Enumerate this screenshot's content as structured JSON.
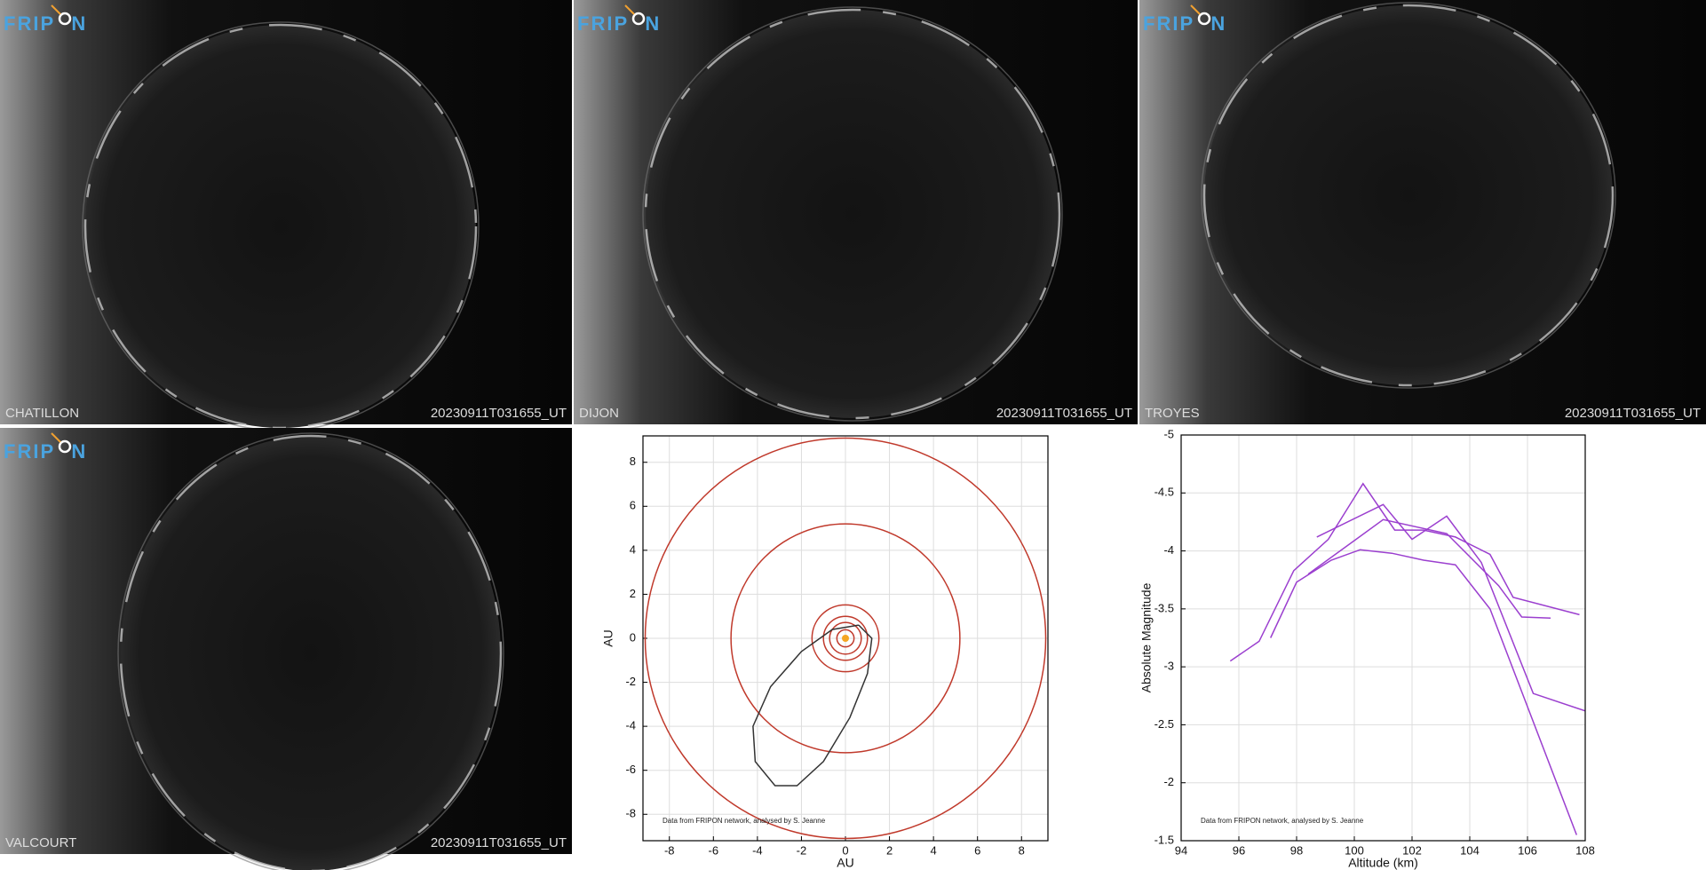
{
  "logo": {
    "left": "FRIP",
    "right": "N"
  },
  "cameras": [
    {
      "station": "CHATILLON",
      "timestamp": "20230911T031655_UT"
    },
    {
      "station": "DIJON",
      "timestamp": "20230911T031655_UT"
    },
    {
      "station": "TROYES",
      "timestamp": "20230911T031655_UT"
    },
    {
      "station": "VALCOURT",
      "timestamp": "20230911T031655_UT"
    }
  ],
  "chart_data": [
    {
      "type": "orbit",
      "xlabel": "AU",
      "ylabel": "AU",
      "annotation": "Data from FRIPON network, analysed by S. Jeanne",
      "xlim": [
        -9.2,
        9.2
      ],
      "ylim": [
        -9.2,
        9.2
      ],
      "xticks": [
        -8,
        -6,
        -4,
        -2,
        0,
        2,
        4,
        6,
        8
      ],
      "yticks": [
        -8,
        -6,
        -4,
        -2,
        0,
        2,
        4,
        6,
        8
      ],
      "grid": true,
      "sun": {
        "x": 0,
        "y": 0,
        "color": "#f5a623"
      },
      "orbits": {
        "color": "#c0392b",
        "radii": [
          0.39,
          0.72,
          1,
          1.52,
          5.2,
          9.1
        ]
      },
      "series": [
        {
          "color": "#333333",
          "x": [
            0.6,
            1.2,
            1.0,
            0.2,
            -1.0,
            -2.2,
            -3.2,
            -4.1,
            -4.2,
            -3.4,
            -2.0,
            -0.6,
            0.6
          ],
          "y": [
            0.6,
            0,
            -1.6,
            -3.6,
            -5.6,
            -6.7,
            -6.7,
            -5.6,
            -4.0,
            -2.2,
            -0.6,
            0.4,
            0.6
          ]
        }
      ]
    },
    {
      "type": "line",
      "xlabel": "Altitude (km)",
      "ylabel": "Absolute Magnitude",
      "annotation": "Data from FRIPON network, analysed by S. Jeanne",
      "xlim": [
        94,
        108
      ],
      "ylim": [
        -1.5,
        -5
      ],
      "xticks": [
        94,
        96,
        98,
        100,
        102,
        104,
        106,
        108
      ],
      "yticks": [
        -5,
        -4.5,
        -4,
        -3.5,
        -3,
        -2.5,
        -2,
        -1.5
      ],
      "grid": true,
      "series": [
        {
          "color": "#9b3fcf",
          "x": [
            95.7,
            96.7,
            97.9,
            99.1,
            100.3,
            101.4,
            102.4,
            103.5,
            104.7,
            105.5,
            107.8
          ],
          "y": [
            -3.05,
            -3.22,
            -3.83,
            -4.1,
            -4.58,
            -4.18,
            -4.18,
            -4.12,
            -3.97,
            -3.6,
            -3.45
          ]
        },
        {
          "color": "#9b3fcf",
          "x": [
            97.1,
            98.0,
            99.2,
            100.2,
            101.3,
            102.4,
            103.5,
            104.7,
            107.7
          ],
          "y": [
            -3.25,
            -3.73,
            -3.92,
            -4.01,
            -3.98,
            -3.92,
            -3.88,
            -3.5,
            -1.55
          ]
        },
        {
          "color": "#9b3fcf",
          "x": [
            98.7,
            101.0,
            102.0,
            103.2,
            104.4,
            106.2,
            108
          ],
          "y": [
            -4.12,
            -4.4,
            -4.1,
            -4.3,
            -3.9,
            -2.77,
            -2.62
          ]
        },
        {
          "color": "#9b3fcf",
          "x": [
            98.4,
            101.0,
            103.2,
            105.0,
            105.8,
            106.8
          ],
          "y": [
            -3.8,
            -4.27,
            -4.15,
            -3.7,
            -3.43,
            -3.42
          ]
        }
      ]
    }
  ]
}
